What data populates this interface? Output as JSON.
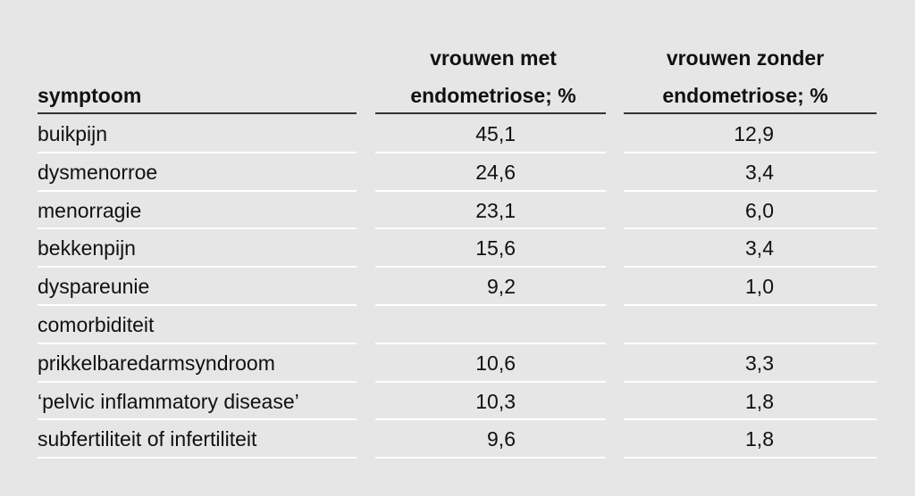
{
  "table": {
    "header": [
      [
        "symptoom"
      ],
      [
        "vrouwen met",
        "endometriose; %"
      ],
      [
        "vrouwen zonder",
        "endometriose; %"
      ]
    ],
    "rows": [
      [
        "buikpijn",
        "45,1",
        "12,9"
      ],
      [
        "dysmenorroe",
        "24,6",
        "3,4"
      ],
      [
        "menorragie",
        "23,1",
        "6,0"
      ],
      [
        "bekkenpijn",
        "15,6",
        "3,4"
      ],
      [
        "dyspareunie",
        "9,2",
        "1,0"
      ],
      [
        "comorbiditeit"
      ],
      [
        "prikkelbaredarmsyndroom",
        "10,6",
        "3,3"
      ],
      [
        "‘pelvic inflammatory disease’",
        "10,3",
        "1,8"
      ],
      [
        "subfertiliteit of infertiliteit",
        "9,6",
        "1,8"
      ]
    ]
  }
}
